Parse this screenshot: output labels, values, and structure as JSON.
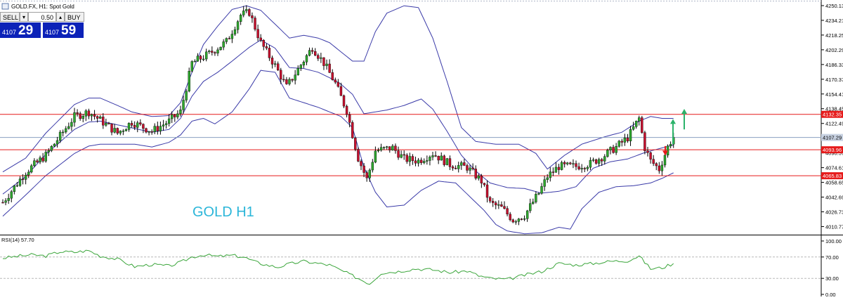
{
  "header": {
    "symbol_title": "GOLD.FX, H1:  Spot Gold"
  },
  "trade_panel": {
    "sell_label": "SELL",
    "buy_label": "BUY",
    "lot_value": "0.50",
    "step_down": "▾",
    "step_up": "▴",
    "sell_price_small": "4107",
    "sell_price_big": "29",
    "buy_price_small": "4107",
    "buy_price_big": "59"
  },
  "watermark": "GOLD H1",
  "rsi_label": "RSI(14) 57.70",
  "colors": {
    "bull": "#2ea82e",
    "bear": "#c8102e",
    "bands": "#3a3aa8",
    "level": "#e61a1a",
    "current": "#8aa0c0",
    "rsi": "#3aa53a",
    "watermark": "#2bb6d9",
    "up_arrow": "#2bb36a",
    "down_arrow": "#e61a1a"
  },
  "chart_data": {
    "type": "candlestick",
    "ylim": [
      4002,
      4250.13
    ],
    "yticks": [
      4250.13,
      4234.21,
      4218.25,
      4202.29,
      4186.33,
      4170.37,
      4154.41,
      4138.45,
      4122.49,
      4106.53,
      4090.57,
      4074.61,
      4058.65,
      4042.69,
      4026.73,
      4010.77
    ],
    "price_tags": [
      {
        "value": 4132.35,
        "label": "4132.35",
        "kind": "level"
      },
      {
        "value": 4107.29,
        "label": "4107.29",
        "kind": "current"
      },
      {
        "value": 4093.96,
        "label": "4093.96",
        "kind": "level"
      },
      {
        "value": 4065.83,
        "label": "4065.83",
        "kind": "level"
      }
    ],
    "horizontal_levels": [
      4132.35,
      4093.96,
      4065.83
    ],
    "current_price": 4107.29,
    "anchor_path": [
      [
        0,
        4037
      ],
      [
        8,
        4070
      ],
      [
        15,
        4088
      ],
      [
        25,
        4130
      ],
      [
        30,
        4135
      ],
      [
        34,
        4126
      ],
      [
        40,
        4112
      ],
      [
        45,
        4124
      ],
      [
        52,
        4114
      ],
      [
        58,
        4125
      ],
      [
        62,
        4135
      ],
      [
        66,
        4188
      ],
      [
        72,
        4198
      ],
      [
        78,
        4211
      ],
      [
        83,
        4240
      ],
      [
        86,
        4243
      ],
      [
        90,
        4210
      ],
      [
        95,
        4185
      ],
      [
        99,
        4162
      ],
      [
        104,
        4186
      ],
      [
        108,
        4205
      ],
      [
        112,
        4188
      ],
      [
        116,
        4166
      ],
      [
        120,
        4136
      ],
      [
        124,
        4085
      ],
      [
        127,
        4062
      ],
      [
        130,
        4093
      ],
      [
        136,
        4096
      ],
      [
        140,
        4084
      ],
      [
        145,
        4082
      ],
      [
        150,
        4090
      ],
      [
        156,
        4078
      ],
      [
        162,
        4075
      ],
      [
        167,
        4060
      ],
      [
        170,
        4036
      ],
      [
        174,
        4031
      ],
      [
        178,
        4018
      ],
      [
        182,
        4023
      ],
      [
        187,
        4047
      ],
      [
        190,
        4065
      ],
      [
        194,
        4076
      ],
      [
        200,
        4076
      ],
      [
        205,
        4079
      ],
      [
        210,
        4088
      ],
      [
        214,
        4097
      ],
      [
        218,
        4107
      ],
      [
        222,
        4128
      ],
      [
        224,
        4096
      ],
      [
        226,
        4082
      ],
      [
        229,
        4073
      ],
      [
        232,
        4097
      ],
      [
        234,
        4109
      ]
    ],
    "bull_bias": 0.55,
    "bands": {
      "upper": [
        [
          0,
          4070
        ],
        [
          8,
          4085
        ],
        [
          15,
          4112
        ],
        [
          25,
          4143
        ],
        [
          30,
          4150
        ],
        [
          34,
          4150
        ],
        [
          40,
          4142
        ],
        [
          45,
          4135
        ],
        [
          52,
          4130
        ],
        [
          58,
          4131
        ],
        [
          62,
          4145
        ],
        [
          66,
          4178
        ],
        [
          70,
          4208
        ],
        [
          75,
          4228
        ],
        [
          80,
          4246
        ],
        [
          85,
          4250
        ],
        [
          90,
          4245
        ],
        [
          95,
          4230
        ],
        [
          100,
          4215
        ],
        [
          105,
          4218
        ],
        [
          110,
          4215
        ],
        [
          114,
          4210
        ],
        [
          118,
          4200
        ],
        [
          122,
          4190
        ],
        [
          126,
          4190
        ],
        [
          130,
          4222
        ],
        [
          134,
          4242
        ],
        [
          140,
          4250
        ],
        [
          145,
          4248
        ],
        [
          150,
          4215
        ],
        [
          155,
          4168
        ],
        [
          160,
          4118
        ],
        [
          165,
          4103
        ],
        [
          172,
          4100
        ],
        [
          180,
          4100
        ],
        [
          186,
          4090
        ],
        [
          190,
          4073
        ],
        [
          196,
          4088
        ],
        [
          202,
          4100
        ],
        [
          210,
          4108
        ],
        [
          216,
          4113
        ],
        [
          222,
          4125
        ],
        [
          226,
          4130
        ],
        [
          230,
          4128
        ],
        [
          234,
          4128
        ]
      ],
      "lower": [
        [
          0,
          4022
        ],
        [
          8,
          4045
        ],
        [
          15,
          4066
        ],
        [
          25,
          4090
        ],
        [
          30,
          4098
        ],
        [
          34,
          4100
        ],
        [
          40,
          4100
        ],
        [
          46,
          4100
        ],
        [
          52,
          4097
        ],
        [
          58,
          4102
        ],
        [
          62,
          4110
        ],
        [
          66,
          4125
        ],
        [
          70,
          4128
        ],
        [
          74,
          4122
        ],
        [
          80,
          4135
        ],
        [
          86,
          4160
        ],
        [
          90,
          4180
        ],
        [
          95,
          4178
        ],
        [
          100,
          4150
        ],
        [
          105,
          4145
        ],
        [
          110,
          4140
        ],
        [
          114,
          4135
        ],
        [
          118,
          4130
        ],
        [
          122,
          4118
        ],
        [
          126,
          4075
        ],
        [
          130,
          4048
        ],
        [
          134,
          4032
        ],
        [
          140,
          4034
        ],
        [
          146,
          4050
        ],
        [
          152,
          4060
        ],
        [
          158,
          4058
        ],
        [
          164,
          4040
        ],
        [
          168,
          4028
        ],
        [
          172,
          4013
        ],
        [
          176,
          4006
        ],
        [
          182,
          4003
        ],
        [
          188,
          4004
        ],
        [
          194,
          4010
        ],
        [
          198,
          4008
        ],
        [
          202,
          4030
        ],
        [
          208,
          4048
        ],
        [
          214,
          4054
        ],
        [
          220,
          4055
        ],
        [
          226,
          4058
        ],
        [
          230,
          4063
        ],
        [
          234,
          4069
        ]
      ],
      "middle": [
        [
          0,
          4046
        ],
        [
          8,
          4065
        ],
        [
          15,
          4089
        ],
        [
          25,
          4116
        ],
        [
          30,
          4124
        ],
        [
          34,
          4125
        ],
        [
          40,
          4121
        ],
        [
          46,
          4117
        ],
        [
          52,
          4113
        ],
        [
          58,
          4116
        ],
        [
          62,
          4128
        ],
        [
          66,
          4152
        ],
        [
          70,
          4168
        ],
        [
          75,
          4178
        ],
        [
          80,
          4190
        ],
        [
          86,
          4205
        ],
        [
          90,
          4213
        ],
        [
          95,
          4204
        ],
        [
          100,
          4183
        ],
        [
          105,
          4182
        ],
        [
          110,
          4178
        ],
        [
          114,
          4172
        ],
        [
          118,
          4165
        ],
        [
          122,
          4154
        ],
        [
          126,
          4133
        ],
        [
          130,
          4135
        ],
        [
          134,
          4137
        ],
        [
          140,
          4142
        ],
        [
          146,
          4149
        ],
        [
          150,
          4138
        ],
        [
          155,
          4114
        ],
        [
          160,
          4088
        ],
        [
          165,
          4071
        ],
        [
          170,
          4058
        ],
        [
          176,
          4053
        ],
        [
          182,
          4052
        ],
        [
          188,
          4047
        ],
        [
          194,
          4049
        ],
        [
          200,
          4054
        ],
        [
          206,
          4074
        ],
        [
          212,
          4081
        ],
        [
          218,
          4084
        ],
        [
          224,
          4091
        ],
        [
          230,
          4096
        ],
        [
          234,
          4099
        ]
      ]
    },
    "rsi": {
      "name": "RSI(14) 57.70",
      "ylim": [
        0,
        100
      ],
      "yticks": [
        100,
        70,
        30,
        0
      ],
      "tick_labels": [
        "100.00",
        "70.00",
        "30.00",
        "0.00"
      ],
      "levels": [
        70,
        30
      ],
      "anchors": [
        [
          0,
          68
        ],
        [
          6,
          72
        ],
        [
          10,
          74
        ],
        [
          15,
          72
        ],
        [
          20,
          80
        ],
        [
          25,
          79
        ],
        [
          30,
          82
        ],
        [
          34,
          72
        ],
        [
          40,
          66
        ],
        [
          46,
          52
        ],
        [
          52,
          56
        ],
        [
          58,
          53
        ],
        [
          62,
          60
        ],
        [
          66,
          70
        ],
        [
          70,
          74
        ],
        [
          75,
          71
        ],
        [
          80,
          73
        ],
        [
          84,
          70
        ],
        [
          88,
          61
        ],
        [
          92,
          55
        ],
        [
          96,
          51
        ],
        [
          100,
          57
        ],
        [
          105,
          62
        ],
        [
          110,
          58
        ],
        [
          114,
          55
        ],
        [
          118,
          45
        ],
        [
          124,
          30
        ],
        [
          128,
          20
        ],
        [
          132,
          40
        ],
        [
          138,
          43
        ],
        [
          144,
          48
        ],
        [
          150,
          46
        ],
        [
          156,
          41
        ],
        [
          162,
          44
        ],
        [
          166,
          35
        ],
        [
          170,
          30
        ],
        [
          176,
          28
        ],
        [
          182,
          36
        ],
        [
          188,
          43
        ],
        [
          194,
          58
        ],
        [
          200,
          55
        ],
        [
          206,
          58
        ],
        [
          212,
          62
        ],
        [
          218,
          63
        ],
        [
          222,
          72
        ],
        [
          226,
          48
        ],
        [
          230,
          50
        ],
        [
          234,
          57.7
        ]
      ]
    }
  }
}
